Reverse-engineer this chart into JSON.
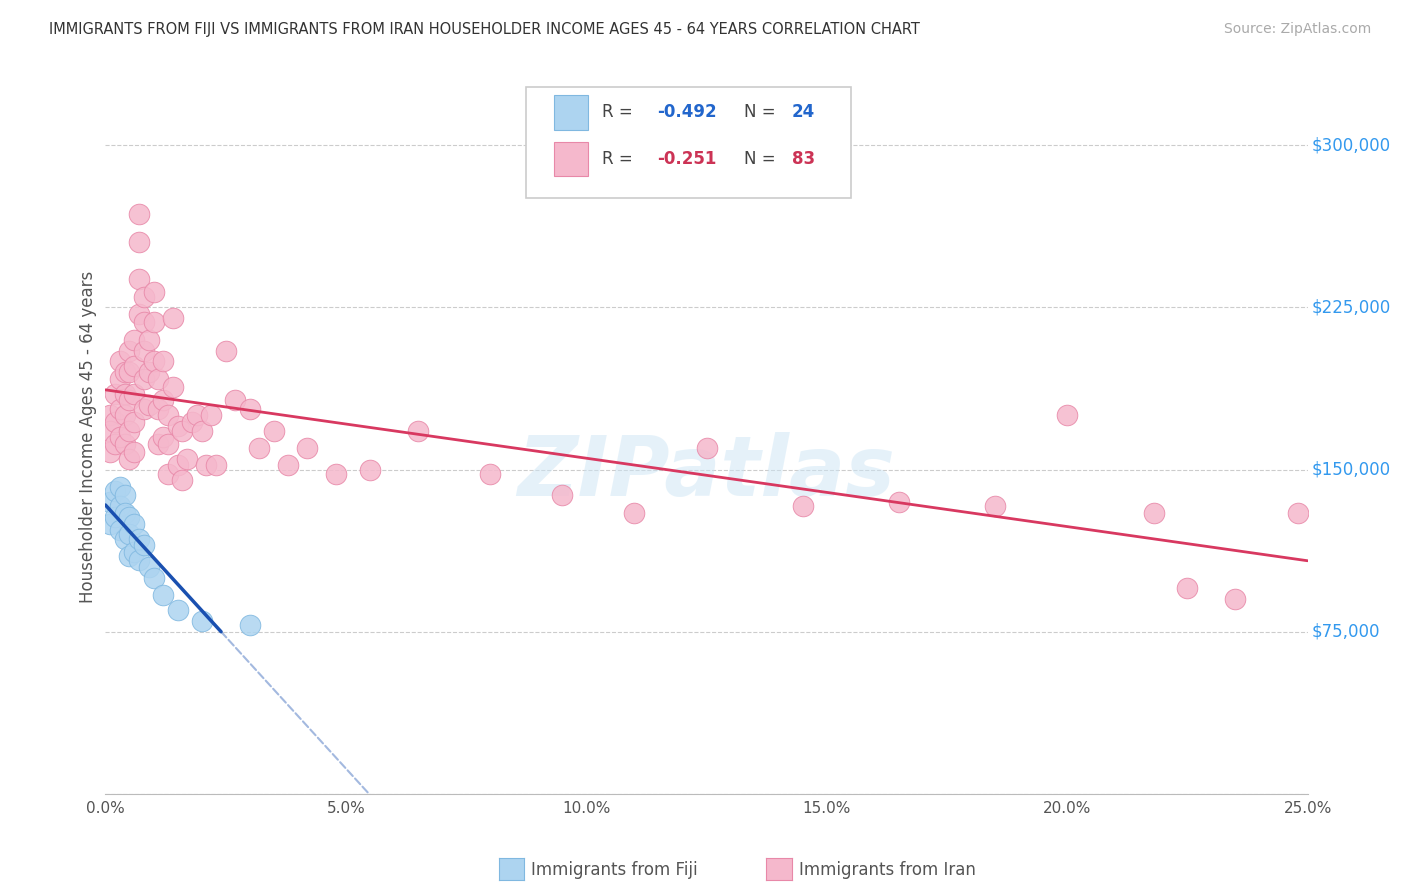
{
  "title": "IMMIGRANTS FROM FIJI VS IMMIGRANTS FROM IRAN HOUSEHOLDER INCOME AGES 45 - 64 YEARS CORRELATION CHART",
  "source": "Source: ZipAtlas.com",
  "ylabel": "Householder Income Ages 45 - 64 years",
  "xmin": 0.0,
  "xmax": 0.25,
  "ymin": 0,
  "ymax": 330000,
  "yticks": [
    0,
    75000,
    150000,
    225000,
    300000
  ],
  "ytick_labels": [
    "",
    "$75,000",
    "$150,000",
    "$225,000",
    "$300,000"
  ],
  "fiji_color": "#add4f0",
  "iran_color": "#f5b8cc",
  "fiji_edge_color": "#80b8e0",
  "iran_edge_color": "#e888a8",
  "fiji_line_color": "#1a50b0",
  "iran_line_color": "#d83860",
  "fiji_R": -0.492,
  "fiji_N": 24,
  "iran_R": -0.251,
  "iran_N": 83,
  "watermark": "ZIPatlas",
  "fiji_x": [
    0.001,
    0.001,
    0.002,
    0.002,
    0.003,
    0.003,
    0.003,
    0.004,
    0.004,
    0.004,
    0.005,
    0.005,
    0.005,
    0.006,
    0.006,
    0.007,
    0.007,
    0.008,
    0.009,
    0.01,
    0.012,
    0.015,
    0.02,
    0.03
  ],
  "fiji_y": [
    135000,
    125000,
    140000,
    128000,
    142000,
    133000,
    122000,
    138000,
    130000,
    118000,
    128000,
    120000,
    110000,
    125000,
    112000,
    118000,
    108000,
    115000,
    105000,
    100000,
    92000,
    85000,
    80000,
    78000
  ],
  "iran_x": [
    0.001,
    0.001,
    0.001,
    0.002,
    0.002,
    0.002,
    0.003,
    0.003,
    0.003,
    0.003,
    0.004,
    0.004,
    0.004,
    0.004,
    0.005,
    0.005,
    0.005,
    0.005,
    0.005,
    0.006,
    0.006,
    0.006,
    0.006,
    0.006,
    0.007,
    0.007,
    0.007,
    0.007,
    0.008,
    0.008,
    0.008,
    0.008,
    0.008,
    0.009,
    0.009,
    0.009,
    0.01,
    0.01,
    0.01,
    0.011,
    0.011,
    0.011,
    0.012,
    0.012,
    0.012,
    0.013,
    0.013,
    0.013,
    0.014,
    0.014,
    0.015,
    0.015,
    0.016,
    0.016,
    0.017,
    0.018,
    0.019,
    0.02,
    0.021,
    0.022,
    0.023,
    0.025,
    0.027,
    0.03,
    0.032,
    0.035,
    0.038,
    0.042,
    0.048,
    0.055,
    0.065,
    0.08,
    0.095,
    0.11,
    0.125,
    0.145,
    0.165,
    0.185,
    0.2,
    0.218,
    0.225,
    0.235,
    0.248
  ],
  "iran_y": [
    175000,
    168000,
    158000,
    185000,
    172000,
    162000,
    200000,
    192000,
    178000,
    165000,
    195000,
    185000,
    175000,
    162000,
    205000,
    195000,
    182000,
    168000,
    155000,
    210000,
    198000,
    185000,
    172000,
    158000,
    268000,
    255000,
    238000,
    222000,
    230000,
    218000,
    205000,
    192000,
    178000,
    210000,
    195000,
    180000,
    232000,
    218000,
    200000,
    192000,
    178000,
    162000,
    200000,
    182000,
    165000,
    175000,
    162000,
    148000,
    220000,
    188000,
    170000,
    152000,
    168000,
    145000,
    155000,
    172000,
    175000,
    168000,
    152000,
    175000,
    152000,
    205000,
    182000,
    178000,
    160000,
    168000,
    152000,
    160000,
    148000,
    150000,
    168000,
    148000,
    138000,
    130000,
    160000,
    133000,
    135000,
    133000,
    175000,
    130000,
    95000,
    90000,
    130000
  ]
}
